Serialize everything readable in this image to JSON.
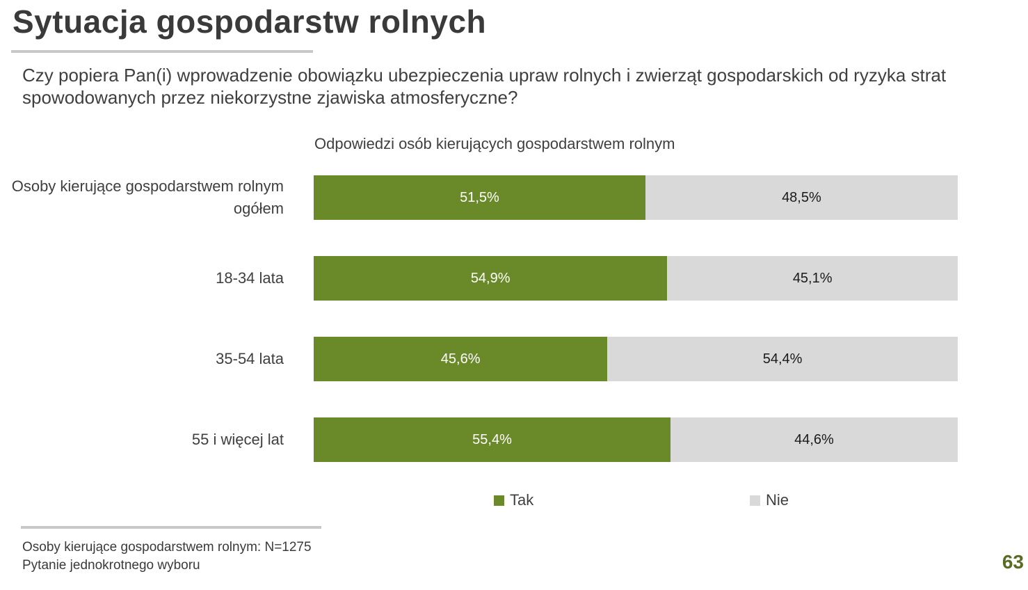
{
  "title": "Sytuacja gospodarstw rolnych",
  "question": "Czy popiera Pan(i) wprowadzenie obowiązku ubezpieczenia upraw rolnych i zwierząt gospodarskich od ryzyka strat spowodowanych przez niekorzystne zjawiska atmosferyczne?",
  "footnotes": {
    "line1": "Osoby kierujące gospodarstwem rolnym: N=1275",
    "line2": "Pytanie jednokrotnego wyboru"
  },
  "page_number": "63",
  "colors": {
    "tak": "#6a8a2a",
    "nie": "#d9d9d9"
  },
  "chart_data": {
    "type": "bar",
    "orientation": "horizontal",
    "stacked": true,
    "title": "Odpowiedzi osób kierujących gospodarstwem rolnym",
    "categories": [
      "Osoby kierujące gospodarstwem rolnym ogółem",
      "18-34 lata",
      "35-54 lata",
      "55 i więcej lat"
    ],
    "series": [
      {
        "name": "Tak",
        "values": [
          51.5,
          54.9,
          45.6,
          55.4
        ],
        "labels": [
          "51,5%",
          "54,9%",
          "45,6%",
          "55,4%"
        ]
      },
      {
        "name": "Nie",
        "values": [
          48.5,
          45.1,
          54.4,
          44.6
        ],
        "labels": [
          "48,5%",
          "45,1%",
          "54,4%",
          "44,6%"
        ]
      }
    ],
    "xlim": [
      0,
      100
    ],
    "legend": "bottom"
  }
}
